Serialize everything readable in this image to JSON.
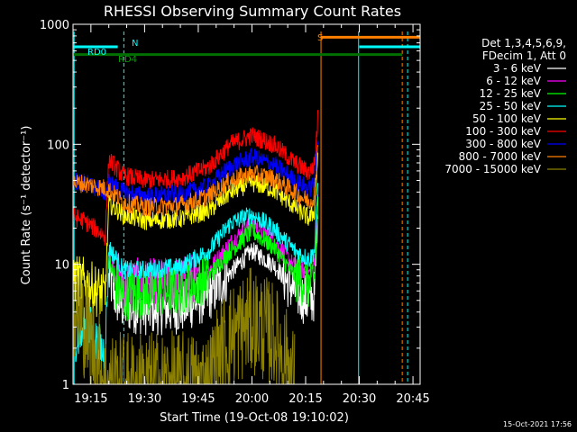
{
  "chart_data": {
    "type": "line",
    "title": "RHESSI Observing Summary Count Rates",
    "xlabel": "Start Time (19-Oct-08 19:10:02)",
    "ylabel": "Count Rate (s⁻¹ detector⁻¹)",
    "y_scale": "log",
    "ylim": [
      1,
      1000
    ],
    "xlim_minutes": [
      0,
      97
    ],
    "x_ticks": [
      {
        "minute": 5,
        "label": "19:15"
      },
      {
        "minute": 20,
        "label": "19:30"
      },
      {
        "minute": 35,
        "label": "19:45"
      },
      {
        "minute": 50,
        "label": "20:00"
      },
      {
        "minute": 65,
        "label": "20:15"
      },
      {
        "minute": 80,
        "label": "20:30"
      },
      {
        "minute": 95,
        "label": "20:45"
      }
    ],
    "y_ticks": [
      {
        "value": 1,
        "label": "1"
      },
      {
        "value": 10,
        "label": "10"
      },
      {
        "value": 100,
        "label": "100"
      },
      {
        "value": 1000,
        "label": "1000"
      }
    ],
    "legend": {
      "placement": "right",
      "header": [
        "Det 1,3,4,5,6,9,",
        "FDecim 1, Att 0"
      ]
    },
    "series": [
      {
        "name": "3 - 6 keV",
        "color": "#ffffff",
        "points": [
          [
            10,
            8
          ],
          [
            12,
            5.2
          ],
          [
            14,
            4.5
          ],
          [
            20,
            4.2
          ],
          [
            30,
            4.3
          ],
          [
            38,
            5.5
          ],
          [
            44,
            8.5
          ],
          [
            50,
            13
          ],
          [
            56,
            10
          ],
          [
            62,
            6
          ],
          [
            66,
            4.8
          ],
          [
            67.5,
            5.5
          ],
          [
            68.5,
            30
          ]
        ]
      },
      {
        "name": "6 - 12 keV",
        "color": "#ff00ff",
        "points": [
          [
            10,
            14
          ],
          [
            12,
            8
          ],
          [
            14,
            7
          ],
          [
            20,
            6.8
          ],
          [
            30,
            7
          ],
          [
            38,
            9
          ],
          [
            44,
            15
          ],
          [
            50,
            22
          ],
          [
            56,
            16
          ],
          [
            62,
            9.5
          ],
          [
            66,
            8.5
          ],
          [
            67.5,
            10
          ],
          [
            68.5,
            40
          ]
        ]
      },
      {
        "name": "12 - 25 keV",
        "color": "#00ff00",
        "points": [
          [
            10,
            11
          ],
          [
            12,
            6.5
          ],
          [
            14,
            5.5
          ],
          [
            20,
            5.8
          ],
          [
            30,
            6
          ],
          [
            38,
            8
          ],
          [
            44,
            13
          ],
          [
            50,
            19
          ],
          [
            56,
            14
          ],
          [
            62,
            8
          ],
          [
            66,
            6.8
          ],
          [
            67.5,
            8
          ],
          [
            68.5,
            35
          ]
        ]
      },
      {
        "name": "25 - 50 keV",
        "color": "#00ffff",
        "points": [
          [
            0,
            2.5
          ],
          [
            5,
            2.8
          ],
          [
            7,
            2
          ],
          [
            9,
            1.8
          ],
          [
            10,
            14
          ],
          [
            14,
            9
          ],
          [
            20,
            9
          ],
          [
            30,
            9.5
          ],
          [
            38,
            13
          ],
          [
            44,
            22
          ],
          [
            50,
            26
          ],
          [
            56,
            20
          ],
          [
            62,
            13
          ],
          [
            66,
            11
          ],
          [
            67.5,
            13
          ],
          [
            68.5,
            50
          ]
        ]
      },
      {
        "name": "50 - 100 keV",
        "color": "#ffff00",
        "points": [
          [
            0,
            7.5
          ],
          [
            3,
            7
          ],
          [
            6,
            6.2
          ],
          [
            9,
            5.5
          ],
          [
            10,
            32
          ],
          [
            14,
            26
          ],
          [
            20,
            23
          ],
          [
            30,
            24
          ],
          [
            38,
            28
          ],
          [
            44,
            40
          ],
          [
            50,
            48
          ],
          [
            56,
            42
          ],
          [
            62,
            30
          ],
          [
            66,
            24
          ],
          [
            67.5,
            28
          ],
          [
            68.5,
            90
          ]
        ]
      },
      {
        "name": "100 - 300 keV",
        "color": "#ff0000",
        "points": [
          [
            0,
            25
          ],
          [
            3,
            23
          ],
          [
            6,
            20
          ],
          [
            9,
            17
          ],
          [
            10,
            75
          ],
          [
            14,
            55
          ],
          [
            20,
            50
          ],
          [
            30,
            52
          ],
          [
            38,
            65
          ],
          [
            44,
            100
          ],
          [
            50,
            118
          ],
          [
            56,
            100
          ],
          [
            62,
            70
          ],
          [
            66,
            58
          ],
          [
            67.5,
            68
          ],
          [
            68.5,
            180
          ]
        ]
      },
      {
        "name": "300 - 800 keV",
        "color": "#0000ff",
        "points": [
          [
            0,
            50
          ],
          [
            3,
            48
          ],
          [
            6,
            44
          ],
          [
            9,
            40
          ],
          [
            10,
            48
          ],
          [
            14,
            40
          ],
          [
            20,
            37
          ],
          [
            30,
            38
          ],
          [
            38,
            45
          ],
          [
            44,
            65
          ],
          [
            50,
            78
          ],
          [
            56,
            68
          ],
          [
            62,
            50
          ],
          [
            66,
            42
          ],
          [
            67.5,
            48
          ],
          [
            68.5,
            130
          ]
        ]
      },
      {
        "name": "800 - 7000 keV",
        "color": "#ff8000",
        "points": [
          [
            0,
            48
          ],
          [
            3,
            47
          ],
          [
            6,
            45
          ],
          [
            9,
            43
          ],
          [
            10,
            42
          ],
          [
            14,
            33
          ],
          [
            20,
            30
          ],
          [
            30,
            31
          ],
          [
            38,
            37
          ],
          [
            44,
            50
          ],
          [
            50,
            57
          ],
          [
            56,
            52
          ],
          [
            62,
            40
          ],
          [
            66,
            33
          ],
          [
            67.5,
            38
          ],
          [
            68.5,
            110
          ]
        ]
      },
      {
        "name": "7000 - 15000 keV",
        "color": "#8b8000",
        "points": [
          [
            0,
            3.8
          ],
          [
            3,
            3.2
          ],
          [
            5,
            2.3
          ],
          [
            7,
            1.6
          ],
          [
            9,
            1
          ],
          [
            38,
            1
          ],
          [
            40,
            1.6
          ],
          [
            44,
            2.5
          ],
          [
            50,
            3.4
          ],
          [
            56,
            2.6
          ],
          [
            60,
            1.5
          ],
          [
            62,
            1
          ]
        ]
      }
    ],
    "annotations": [
      {
        "label": "RD0",
        "color": "#00ffff",
        "minute_range": [
          0,
          12.5
        ]
      },
      {
        "label": "RD4",
        "color": "#007000",
        "minute_range": [
          0,
          11.5
        ]
      },
      {
        "label": "N",
        "color": "#00ffff",
        "minute": 14.5
      },
      {
        "label": "S",
        "color": "#ff8000",
        "minute": 69.5
      }
    ],
    "markers": [
      {
        "label": "N",
        "kind": "horizontal-top",
        "value": 650,
        "color": "#00ffff"
      },
      {
        "label": "S",
        "kind": "horizontal-top",
        "value": 780,
        "color": "#ff8000"
      },
      {
        "label": "RD",
        "kind": "horizontal",
        "value": 560,
        "color": "#007000"
      }
    ],
    "timestamp": "15-Oct-2021 17:56"
  }
}
